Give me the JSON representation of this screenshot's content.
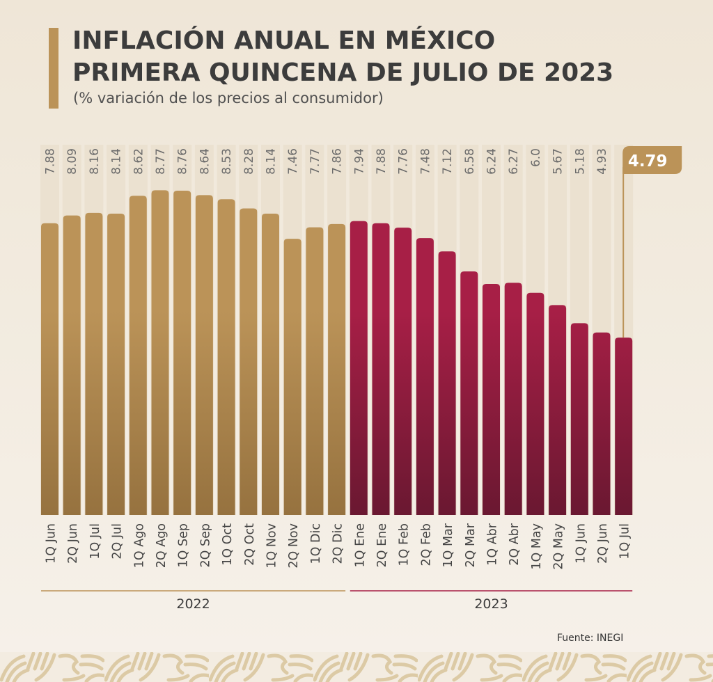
{
  "header": {
    "title_line1": "INFLACIÓN ANUAL EN MÉXICO",
    "title_line2": "PRIMERA QUINCENA DE JULIO DE 2023",
    "subtitle": "(% variación de los precios al consumidor)"
  },
  "chart_data": {
    "type": "bar",
    "title": "INFLACIÓN ANUAL EN MÉXICO PRIMERA QUINCENA DE JULIO DE 2023",
    "subtitle": "(% variación de los precios al consumidor)",
    "xlabel": "",
    "ylabel": "% variación de los precios al consumidor",
    "ylim": [
      0,
      10
    ],
    "grid": false,
    "categories": [
      "1Q Jun",
      "2Q Jun",
      "1Q Jul",
      "2Q Jul",
      "1Q Ago",
      "2Q Ago",
      "1Q Sep",
      "2Q Sep",
      "1Q Oct",
      "2Q Oct",
      "1Q Nov",
      "2Q Nov",
      "1Q Dic",
      "2Q Dic",
      "1Q Ene",
      "2Q Ene",
      "1Q Feb",
      "2Q Feb",
      "1Q Mar",
      "2Q Mar",
      "1Q Abr",
      "2Q Abr",
      "1Q May",
      "2Q May",
      "1Q Jun",
      "2Q Jun",
      "1Q Jul"
    ],
    "values": [
      7.88,
      8.09,
      8.16,
      8.14,
      8.62,
      8.77,
      8.76,
      8.64,
      8.53,
      8.28,
      8.14,
      7.46,
      7.77,
      7.86,
      7.94,
      7.88,
      7.76,
      7.48,
      7.12,
      6.58,
      6.24,
      6.27,
      6.0,
      5.67,
      5.18,
      4.93,
      4.79
    ],
    "value_labels": [
      "7.88",
      "8.09",
      "8.16",
      "8.14",
      "8.62",
      "8.77",
      "8.76",
      "8.64",
      "8.53",
      "8.28",
      "8.14",
      "7.46",
      "7.77",
      "7.86",
      "7.94",
      "7.88",
      "7.76",
      "7.48",
      "7.12",
      "6.58",
      "6.24",
      "6.27",
      "6.0",
      "5.67",
      "5.18",
      "4.93",
      "4.79"
    ],
    "groups": [
      {
        "name": "2022",
        "start": 0,
        "count": 14,
        "color": "#bb9358",
        "color_dark": "#96723f"
      },
      {
        "name": "2023",
        "start": 14,
        "count": 13,
        "color": "#a71f46",
        "color_dark": "#6a1831"
      }
    ],
    "highlight": {
      "index": 26,
      "category": "1Q Jul",
      "label": "4.79"
    }
  },
  "colors": {
    "accent_gold": "#bb9358",
    "accent_red": "#a71f46",
    "track": "#ebe1d0",
    "value_text": "#6b6b6b",
    "category_text": "#444444",
    "pattern": "#dccaa5"
  },
  "footer": {
    "source": "Fuente: INEGI"
  }
}
